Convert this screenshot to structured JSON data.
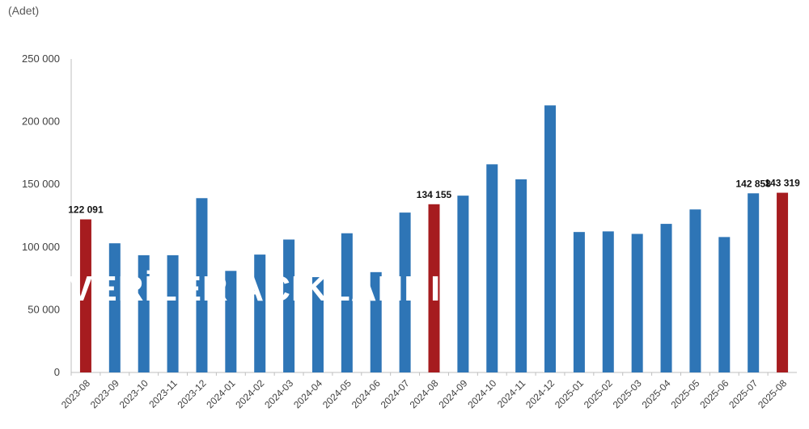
{
  "chart_data": {
    "type": "bar",
    "unit_label": "(Adet)",
    "title": "",
    "xlabel": "",
    "ylabel": "",
    "ylim": [
      0,
      250000
    ],
    "yticks": [
      0,
      50000,
      100000,
      150000,
      200000,
      250000
    ],
    "ytick_labels": [
      "0",
      "50 000",
      "100 000",
      "150 000",
      "200 000",
      "250 000"
    ],
    "grid": false,
    "legend": "none",
    "categories": [
      "2023-08",
      "2023-09",
      "2023-10",
      "2023-11",
      "2023-12",
      "2024-01",
      "2024-02",
      "2024-03",
      "2024-04",
      "2024-05",
      "2024-06",
      "2024-07",
      "2024-08",
      "2024-09",
      "2024-10",
      "2024-11",
      "2024-12",
      "2025-01",
      "2025-02",
      "2025-03",
      "2025-04",
      "2025-05",
      "2025-06",
      "2025-07",
      "2025-08"
    ],
    "values": [
      122091,
      103000,
      93500,
      93500,
      139000,
      81000,
      94000,
      106000,
      76000,
      111000,
      80000,
      127500,
      134155,
      141000,
      166000,
      154000,
      213000,
      112000,
      112500,
      110500,
      118500,
      130000,
      108000,
      142858,
      143319
    ],
    "highlight": [
      0,
      12,
      24
    ],
    "data_labels": [
      {
        "index": 0,
        "text": "122 091"
      },
      {
        "index": 12,
        "text": "134 155"
      },
      {
        "index": 23,
        "text": "142 858"
      },
      {
        "index": 24,
        "text": "143 319"
      }
    ],
    "colors": {
      "bar": "#2E75B6",
      "highlight": "#A61C1F",
      "axis": "#BFBFBF"
    }
  },
  "overlay_text": "VERİLER AÇIKLANDI"
}
